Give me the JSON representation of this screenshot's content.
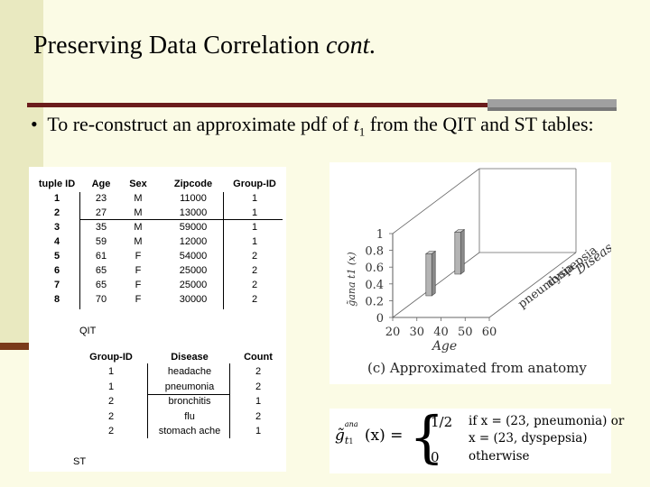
{
  "slide": {
    "title_main": "Preserving Data Correlation ",
    "title_italic": "cont.",
    "bullet_mark": "•",
    "bullet_text_pre": "To re-construct an approximate pdf of ",
    "bullet_var": "t",
    "bullet_sub": "1",
    "bullet_text_post": " from the QIT and ST tables:"
  },
  "qit": {
    "caption": "QIT",
    "headers": [
      "tuple ID",
      "Age",
      "Sex",
      "Zipcode",
      "Group-ID"
    ],
    "rows": [
      [
        "1",
        "23",
        "M",
        "11000",
        "1"
      ],
      [
        "2",
        "27",
        "M",
        "13000",
        "1"
      ],
      [
        "3",
        "35",
        "M",
        "59000",
        "1"
      ],
      [
        "4",
        "59",
        "M",
        "12000",
        "1"
      ],
      [
        "5",
        "61",
        "F",
        "54000",
        "2"
      ],
      [
        "6",
        "65",
        "F",
        "25000",
        "2"
      ],
      [
        "7",
        "65",
        "F",
        "25000",
        "2"
      ],
      [
        "8",
        "70",
        "F",
        "30000",
        "2"
      ]
    ]
  },
  "st": {
    "caption": "ST",
    "headers": [
      "Group-ID",
      "Disease",
      "Count"
    ],
    "rows": [
      [
        "1",
        "headache",
        "2"
      ],
      [
        "1",
        "pneumonia",
        "2"
      ],
      [
        "2",
        "bronchitis",
        "1"
      ],
      [
        "2",
        "flu",
        "2"
      ],
      [
        "2",
        "stomach ache",
        "1"
      ]
    ]
  },
  "chart_data": {
    "type": "bar",
    "title": "(c) Approximated from anatomy",
    "xlabel": "Age",
    "ylabel": "g̃ana t1 (x)",
    "zlabel": "Disease",
    "x_ticks": [
      "20",
      "30",
      "40",
      "50",
      "60"
    ],
    "y_ticks": [
      "0",
      "0.2",
      "0.4",
      "0.6",
      "0.8",
      "1"
    ],
    "z_ticks": [
      "pneumonia",
      "dyspepsia"
    ],
    "ylim": [
      0,
      1
    ],
    "series": [
      {
        "x": 23,
        "z": "pneumonia",
        "value": 0.5
      },
      {
        "x": 23,
        "z": "dyspepsia",
        "value": 0.5
      }
    ]
  },
  "formula": {
    "lhs_base": "g̃",
    "lhs_sup": "ana",
    "lhs_sub": "t",
    "lhs_sub_index": "1",
    "lhs_arg": "(x) =",
    "case1_value": "1/2",
    "case1_line1": "if x = (23, pneumonia) or",
    "case1_line2": "x = (23, dyspepsia)",
    "case2_value": "0",
    "case2_text": "otherwise"
  }
}
